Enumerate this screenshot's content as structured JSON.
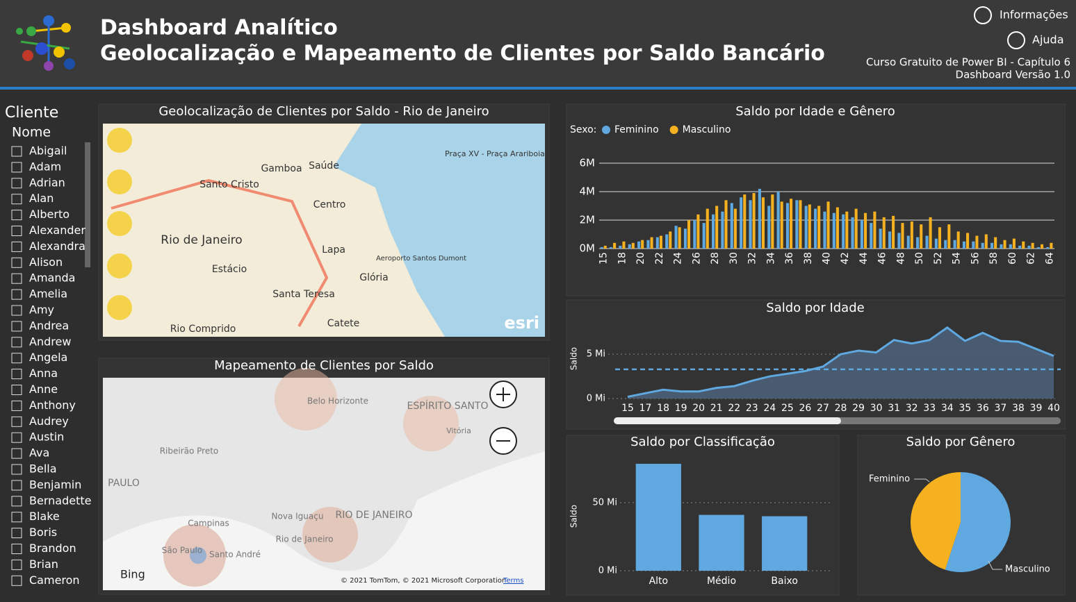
{
  "header": {
    "title": "Dashboard Analítico",
    "subtitle": "Geolocalização e Mapeamento de Clientes por Saldo Bancário",
    "links": [
      "Informações",
      "Ajuda"
    ],
    "course": "Curso Gratuito de Power BI - Capítulo 6",
    "version": "Dashboard Versão 1.0"
  },
  "slicer": {
    "title": "Cliente",
    "field": "Nome",
    "items": [
      "Abigail",
      "Adam",
      "Adrian",
      "Alan",
      "Alberto",
      "Alexander",
      "Alexandra",
      "Alison",
      "Amanda",
      "Amelia",
      "Amy",
      "Andrea",
      "Andrew",
      "Angela",
      "Anna",
      "Anne",
      "Anthony",
      "Audrey",
      "Austin",
      "Ava",
      "Bella",
      "Benjamin",
      "Bernadette",
      "Blake",
      "Boris",
      "Brandon",
      "Brian",
      "Cameron"
    ]
  },
  "maps": [
    {
      "title": "Geolocalização de Clientes por Saldo - Rio de Janeiro",
      "labels": [
        "Rio de Janeiro",
        "Centro",
        "Lapa",
        "Santa Teresa",
        "Glória",
        "Catete",
        "Estácio",
        "Santo Cristo",
        "Gamboa",
        "Saúde",
        "Rio Comprido",
        "Praça XV - Praça Arariboia",
        "Aeroporto Santos Dumont"
      ],
      "attribution": "esri"
    },
    {
      "title": "Mapeamento de Clientes por Saldo",
      "labels": [
        "Belo Horizonte",
        "Ribeirão Preto",
        "Campinas",
        "São Paulo",
        "Santo André",
        "Nova Iguaçu",
        "Rio de Janeiro",
        "Vitória",
        "ESPÍRITO SANTO",
        "RIO DE JANEIRO",
        "PAULO"
      ],
      "attribution": "Bing",
      "copyright": "© 2021 TomTom, © 2021 Microsoft Corporation",
      "terms": "Terms"
    }
  ],
  "chart_data": [
    {
      "type": "bar",
      "title": "Saldo por Idade e Gênero",
      "legend_title": "Sexo:",
      "categories": [
        15,
        null,
        18,
        null,
        20,
        null,
        22,
        null,
        24,
        null,
        26,
        null,
        28,
        null,
        30,
        null,
        32,
        null,
        34,
        null,
        36,
        null,
        38,
        null,
        40,
        null,
        42,
        null,
        44,
        null,
        46,
        null,
        48,
        null,
        50,
        null,
        52,
        null,
        54,
        null,
        56,
        null,
        58,
        null,
        60,
        null,
        62,
        null,
        64
      ],
      "series": [
        {
          "name": "Feminino",
          "color": "#5fa8e0",
          "values": [
            0.1,
            0.1,
            0.2,
            0.3,
            0.5,
            0.6,
            0.8,
            1.0,
            1.6,
            1.4,
            2.0,
            1.8,
            2.4,
            2.6,
            3.2,
            3.6,
            3.4,
            4.2,
            3.0,
            4.0,
            3.2,
            3.4,
            3.0,
            2.8,
            2.6,
            2.5,
            2.4,
            2.2,
            2.0,
            1.8,
            1.4,
            1.2,
            1.1,
            0.9,
            0.8,
            0.9,
            0.7,
            0.6,
            0.6,
            0.5,
            0.5,
            0.4,
            0.4,
            0.3,
            0.3,
            0.2,
            0.2,
            0.1,
            0.1
          ]
        },
        {
          "name": "Masculino",
          "color": "#f5b120",
          "values": [
            0.2,
            0.4,
            0.5,
            0.4,
            0.6,
            0.8,
            0.9,
            1.2,
            1.5,
            2.0,
            2.4,
            2.8,
            3.0,
            3.4,
            2.8,
            3.8,
            3.9,
            3.6,
            3.8,
            3.3,
            3.5,
            3.4,
            3.1,
            3.0,
            3.3,
            2.9,
            2.6,
            2.8,
            2.5,
            2.6,
            2.2,
            2.3,
            1.8,
            1.9,
            1.7,
            2.2,
            1.5,
            1.7,
            1.2,
            1.1,
            0.9,
            1.0,
            0.8,
            0.6,
            0.7,
            0.5,
            0.4,
            0.3,
            0.4
          ]
        }
      ],
      "ylim": [
        0,
        6
      ],
      "yticks": [
        {
          "value": 0,
          "label": "0M"
        },
        {
          "value": 2,
          "label": "2M"
        },
        {
          "value": 4,
          "label": "4M"
        },
        {
          "value": 6,
          "label": "6M"
        }
      ],
      "grid": true
    },
    {
      "type": "area",
      "title": "Saldo por Idade",
      "y_label": "Saldo",
      "color": "#5fa8e0",
      "categories": [
        15,
        17,
        18,
        19,
        20,
        21,
        22,
        23,
        24,
        25,
        26,
        27,
        28,
        29,
        30,
        31,
        32,
        33,
        34,
        35,
        36,
        37,
        38,
        39,
        40
      ],
      "values": [
        0.2,
        0.6,
        1.0,
        0.8,
        0.8,
        1.2,
        1.4,
        2.0,
        2.5,
        2.8,
        3.1,
        3.6,
        5.0,
        5.4,
        5.2,
        6.6,
        6.2,
        6.6,
        8.0,
        6.5,
        7.4,
        6.5,
        6.4,
        5.6,
        4.8
      ],
      "reference_line": 3.3,
      "ylim": [
        0,
        9
      ],
      "yticks": [
        {
          "value": 0,
          "label": "0 Mi"
        },
        {
          "value": 5,
          "label": "5 Mi"
        }
      ],
      "grid": true
    },
    {
      "type": "bar",
      "title": "Saldo por Classificação",
      "y_label": "Saldo",
      "color": "#5fa8e0",
      "categories": [
        "Alto",
        "Médio",
        "Baixo"
      ],
      "values": [
        78.5,
        41,
        40
      ],
      "ylim": [
        0,
        80
      ],
      "yticks": [
        {
          "value": 0,
          "label": "0 Mi"
        },
        {
          "value": 50,
          "label": "50 Mi"
        }
      ],
      "grid": true
    },
    {
      "type": "pie",
      "title": "Saldo por Gênero",
      "categories": [
        "Feminino",
        "Masculino"
      ],
      "values": [
        45,
        55
      ],
      "colors": [
        "#f5b120",
        "#5fa8e0"
      ]
    }
  ]
}
